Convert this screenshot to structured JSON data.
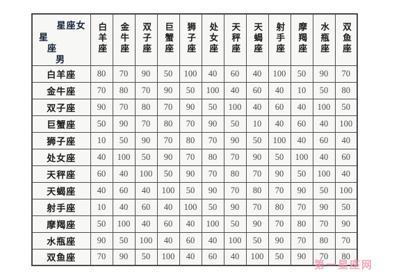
{
  "page": {
    "background": "#ffffff"
  },
  "table_style": {
    "border_color": "#4f4f4f",
    "cell_background": "#f7f7f6",
    "corner_background": "#c9ddee",
    "header_text_color": "#1c1c1c",
    "number_color": "#4a4a4a"
  },
  "watermark": {
    "text": "第一星座网",
    "color": "#ec9ab0"
  },
  "chart_data": {
    "type": "table",
    "title": "",
    "corner": {
      "column_axis_label": "星座女",
      "row_axis_label": "星座男"
    },
    "columns": [
      "白羊座",
      "金牛座",
      "双子座",
      "巨蟹座",
      "狮子座",
      "处女座",
      "天秤座",
      "天蝎座",
      "射手座",
      "摩羯座",
      "水瓶座",
      "双鱼座"
    ],
    "rows": [
      {
        "label": "白羊座",
        "values": [
          80,
          70,
          90,
          50,
          100,
          40,
          60,
          40,
          100,
          50,
          90,
          70
        ]
      },
      {
        "label": "金牛座",
        "values": [
          70,
          80,
          70,
          90,
          50,
          100,
          40,
          60,
          40,
          10,
          50,
          80
        ]
      },
      {
        "label": "双子座",
        "values": [
          90,
          70,
          80,
          70,
          90,
          50,
          100,
          40,
          60,
          40,
          100,
          50
        ]
      },
      {
        "label": "巨蟹座",
        "values": [
          50,
          90,
          70,
          80,
          70,
          90,
          50,
          10,
          40,
          60,
          40,
          100
        ]
      },
      {
        "label": "狮子座",
        "values": [
          10,
          50,
          90,
          70,
          80,
          70,
          90,
          50,
          100,
          40,
          60,
          40
        ]
      },
      {
        "label": "处女座",
        "values": [
          40,
          100,
          50,
          90,
          70,
          80,
          70,
          90,
          50,
          100,
          40,
          60
        ]
      },
      {
        "label": "天秤座",
        "values": [
          60,
          40,
          100,
          50,
          90,
          70,
          80,
          70,
          90,
          50,
          100,
          40
        ]
      },
      {
        "label": "天蝎座",
        "values": [
          40,
          60,
          40,
          100,
          50,
          90,
          70,
          80,
          70,
          90,
          50,
          100
        ]
      },
      {
        "label": "射手座",
        "values": [
          10,
          40,
          60,
          40,
          100,
          50,
          90,
          70,
          80,
          70,
          90,
          50
        ]
      },
      {
        "label": "摩羯座",
        "values": [
          50,
          100,
          40,
          60,
          40,
          100,
          50,
          90,
          70,
          80,
          70,
          90
        ]
      },
      {
        "label": "水瓶座",
        "values": [
          90,
          50,
          100,
          40,
          60,
          40,
          100,
          50,
          90,
          70,
          80,
          70
        ]
      },
      {
        "label": "双鱼座",
        "values": [
          70,
          90,
          50,
          100,
          40,
          60,
          40,
          100,
          50,
          90,
          70,
          80
        ]
      }
    ]
  }
}
